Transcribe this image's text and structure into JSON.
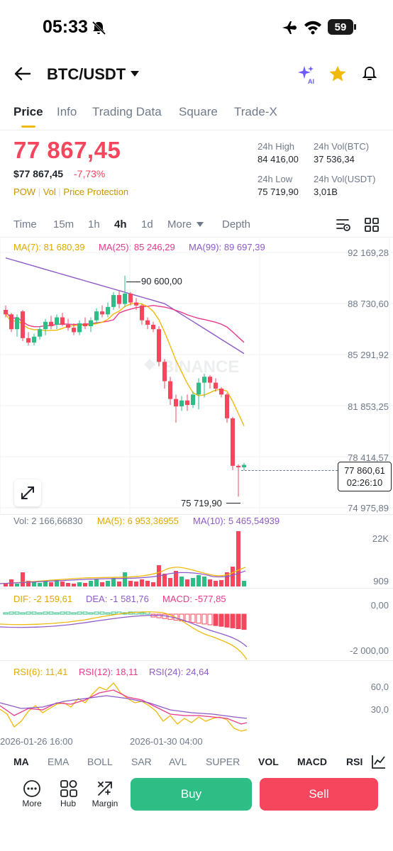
{
  "status_bar": {
    "time": "05:33",
    "battery": "59"
  },
  "header": {
    "pair": "BTC/USDT"
  },
  "tabs": [
    "Price",
    "Info",
    "Trading Data",
    "Square",
    "Trade-X"
  ],
  "ticker": {
    "last_price": "77 867,45",
    "usd_price": "$77 867,45",
    "change_pct": "-7,73%",
    "tags": [
      "POW",
      "Vol",
      "Price Protection"
    ],
    "high_label": "24h High",
    "high_value": "84 416,00",
    "vol_btc_label": "24h Vol(BTC)",
    "vol_btc_value": "37 536,34",
    "low_label": "24h Low",
    "low_value": "75 719,90",
    "vol_usdt_label": "24h Vol(USDT)",
    "vol_usdt_value": "3,01B"
  },
  "timeframes": [
    "Time",
    "15m",
    "1h",
    "4h",
    "1d",
    "More",
    "Depth"
  ],
  "ma_legend": {
    "ma7": "MA(7): 81 680,39",
    "ma25": "MA(25): 85 246,29",
    "ma99": "MA(99): 89 697,39"
  },
  "price_axis": [
    "92 169,28",
    "88 730,60",
    "85 291,92",
    "81 853,25",
    "78 414,57",
    "74 975,89"
  ],
  "annotations": {
    "high_marker": "90 600,00",
    "low_marker": "75 719,90",
    "current_price": "77 860,61",
    "countdown": "02:26:10"
  },
  "watermark": "BINANCE",
  "volume_legend": {
    "vol": "Vol: 2 166,66830",
    "ma5": "MA(5): 6 953,36955",
    "ma10": "MA(10): 5 465,54939"
  },
  "volume_axis": [
    "22K",
    "909"
  ],
  "macd_legend": {
    "dif": "DIF: -2 159,61",
    "dea": "DEA: -1 581,76",
    "macd": "MACD: -577,85"
  },
  "macd_axis": [
    "0,00",
    "-2 000,00"
  ],
  "rsi_legend": {
    "rsi6": "RSI(6): 11,41",
    "rsi12": "RSI(12): 18,11",
    "rsi24": "RSI(24): 24,64"
  },
  "rsi_axis": [
    "60,0",
    "30,0"
  ],
  "time_axis": [
    "2026-01-26 16:00",
    "2026-01-30 04:00"
  ],
  "indicator_tabs": [
    "MA",
    "EMA",
    "BOLL",
    "SAR",
    "AVL",
    "SUPER",
    "VOL",
    "MACD",
    "RSI"
  ],
  "bottom_bar": {
    "more": "More",
    "hub": "Hub",
    "margin": "Margin",
    "buy": "Buy",
    "sell": "Sell"
  },
  "colors": {
    "up": "#2ebd85",
    "down": "#f6465d",
    "ma7": "#f0b90b",
    "ma25": "#e6398b",
    "ma99": "#8e5ac8",
    "accent": "#f0b90b"
  },
  "chart_data": {
    "type": "candlestick",
    "ylim": [
      74975.89,
      92169.28
    ],
    "candles": [
      {
        "o": 88300,
        "h": 88600,
        "l": 87800,
        "c": 88000
      },
      {
        "o": 88000,
        "h": 88100,
        "l": 86800,
        "c": 87000
      },
      {
        "o": 87000,
        "h": 88000,
        "l": 86500,
        "c": 87800
      },
      {
        "o": 88200,
        "h": 88300,
        "l": 86200,
        "c": 86400
      },
      {
        "o": 86400,
        "h": 86800,
        "l": 85900,
        "c": 86100
      },
      {
        "o": 86100,
        "h": 86700,
        "l": 85900,
        "c": 86500
      },
      {
        "o": 86500,
        "h": 87200,
        "l": 86300,
        "c": 87000
      },
      {
        "o": 87000,
        "h": 87700,
        "l": 86600,
        "c": 87500
      },
      {
        "o": 87500,
        "h": 87900,
        "l": 87000,
        "c": 87200
      },
      {
        "o": 87300,
        "h": 88000,
        "l": 87000,
        "c": 87800
      },
      {
        "o": 87800,
        "h": 88100,
        "l": 87200,
        "c": 87300
      },
      {
        "o": 87300,
        "h": 87700,
        "l": 86900,
        "c": 87100
      },
      {
        "o": 87100,
        "h": 87400,
        "l": 86600,
        "c": 86800
      },
      {
        "o": 86800,
        "h": 87600,
        "l": 86600,
        "c": 87400
      },
      {
        "o": 87400,
        "h": 87800,
        "l": 87000,
        "c": 87200
      },
      {
        "o": 87200,
        "h": 87800,
        "l": 86800,
        "c": 87600
      },
      {
        "o": 87600,
        "h": 88400,
        "l": 87400,
        "c": 88200
      },
      {
        "o": 88200,
        "h": 88600,
        "l": 87800,
        "c": 88000
      },
      {
        "o": 88000,
        "h": 88800,
        "l": 87800,
        "c": 88500
      },
      {
        "o": 88500,
        "h": 89500,
        "l": 88300,
        "c": 89300
      },
      {
        "o": 89300,
        "h": 89600,
        "l": 88400,
        "c": 88700
      },
      {
        "o": 88700,
        "h": 90600,
        "l": 88500,
        "c": 89400
      },
      {
        "o": 89400,
        "h": 89500,
        "l": 88600,
        "c": 88800
      },
      {
        "o": 88800,
        "h": 89100,
        "l": 88300,
        "c": 88600
      },
      {
        "o": 88600,
        "h": 88700,
        "l": 87300,
        "c": 87600
      },
      {
        "o": 87600,
        "h": 87800,
        "l": 87000,
        "c": 87300
      },
      {
        "o": 87300,
        "h": 87500,
        "l": 86800,
        "c": 87000
      },
      {
        "o": 87000,
        "h": 87200,
        "l": 84500,
        "c": 84800
      },
      {
        "o": 84800,
        "h": 85000,
        "l": 83000,
        "c": 83500
      },
      {
        "o": 83500,
        "h": 83800,
        "l": 81900,
        "c": 82300
      },
      {
        "o": 82300,
        "h": 82600,
        "l": 80700,
        "c": 81800
      },
      {
        "o": 81800,
        "h": 82500,
        "l": 81500,
        "c": 82200
      },
      {
        "o": 82200,
        "h": 82600,
        "l": 81500,
        "c": 81900
      },
      {
        "o": 81900,
        "h": 82800,
        "l": 81700,
        "c": 82600
      },
      {
        "o": 82600,
        "h": 83700,
        "l": 81600,
        "c": 83400
      },
      {
        "o": 83400,
        "h": 84000,
        "l": 82400,
        "c": 83800
      },
      {
        "o": 83800,
        "h": 83900,
        "l": 83000,
        "c": 83400
      },
      {
        "o": 83400,
        "h": 83700,
        "l": 82800,
        "c": 83000
      },
      {
        "o": 83000,
        "h": 83100,
        "l": 82400,
        "c": 82600
      },
      {
        "o": 82600,
        "h": 82700,
        "l": 80700,
        "c": 81000
      },
      {
        "o": 81000,
        "h": 81100,
        "l": 77500,
        "c": 77800
      },
      {
        "o": 77800,
        "h": 77900,
        "l": 75719.9,
        "c": 77700
      },
      {
        "o": 77700,
        "h": 78000,
        "l": 77500,
        "c": 77867
      }
    ]
  }
}
